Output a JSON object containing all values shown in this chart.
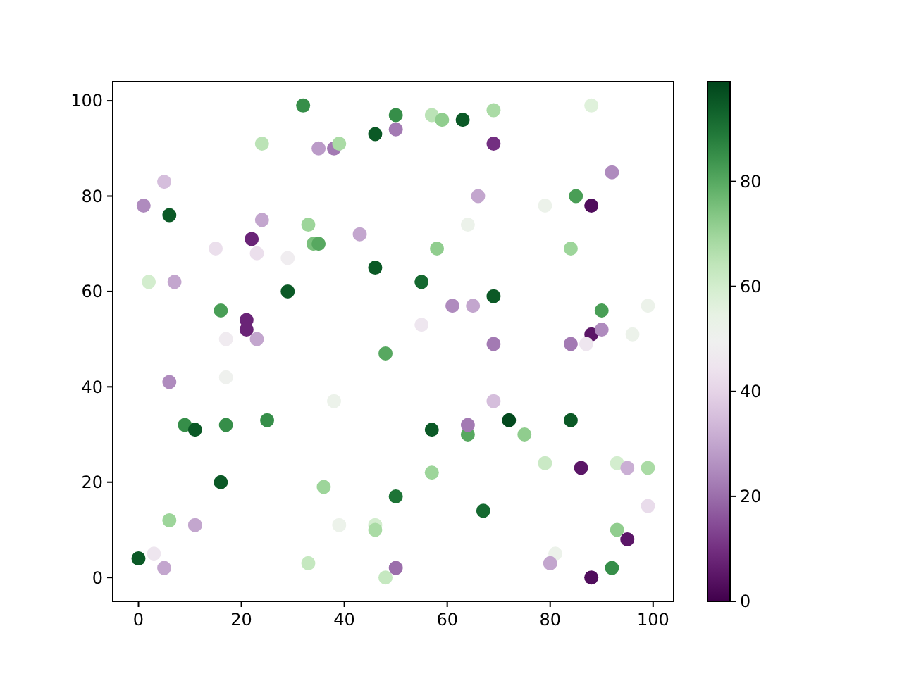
{
  "chart_data": {
    "type": "scatter",
    "xlim": [
      -5,
      104
    ],
    "ylim": [
      -5,
      104
    ],
    "xticks": [
      0,
      20,
      40,
      60,
      80,
      100
    ],
    "yticks": [
      0,
      20,
      40,
      60,
      80,
      100
    ],
    "clim": [
      0,
      99
    ],
    "cticks": [
      0,
      20,
      40,
      60,
      80
    ],
    "marker": "circle",
    "series": [
      {
        "x": [
          0,
          3,
          5,
          1,
          5,
          6,
          2,
          7,
          6,
          9,
          11,
          6,
          11,
          15,
          22,
          24,
          24,
          32,
          35,
          38,
          39,
          16,
          17,
          21,
          21,
          23,
          23,
          29,
          33,
          34,
          35,
          43,
          29,
          16,
          17,
          17,
          25,
          36,
          38,
          39,
          33,
          46,
          46,
          48,
          50,
          50,
          48,
          46,
          46,
          50,
          50,
          57,
          59,
          63,
          69,
          69,
          66,
          64,
          58,
          55,
          55,
          61,
          65,
          69,
          69,
          69,
          57,
          64,
          64,
          72,
          75,
          67,
          57,
          79,
          79,
          85,
          88,
          88,
          92,
          84,
          84,
          88,
          87,
          90,
          90,
          96,
          99,
          84,
          86,
          93,
          95,
          99,
          99,
          93,
          95,
          92,
          88,
          81,
          80
        ],
        "values": [
          4,
          5,
          2,
          78,
          83,
          76,
          62,
          62,
          41,
          32,
          31,
          12,
          11,
          69,
          71,
          75,
          91,
          99,
          90,
          90,
          91,
          56,
          50,
          54,
          52,
          50,
          68,
          67,
          74,
          70,
          70,
          72,
          60,
          20,
          32,
          42,
          33,
          19,
          37,
          11,
          3,
          11,
          10,
          0,
          2,
          17,
          47,
          65,
          93,
          97,
          94,
          97,
          96,
          96,
          98,
          91,
          80,
          74,
          69,
          62,
          53,
          57,
          57,
          59,
          49,
          37,
          31,
          30,
          32,
          33,
          30,
          14,
          22,
          24,
          78,
          80,
          78,
          99,
          85,
          69,
          49,
          51,
          49,
          56,
          52,
          51,
          57,
          33,
          23,
          24,
          23,
          23,
          15,
          10,
          8,
          2,
          0,
          5,
          3
        ],
        "cvalues": [
          95,
          45,
          30,
          25,
          35,
          95,
          60,
          30,
          25,
          85,
          95,
          70,
          30,
          43,
          8,
          30,
          65,
          85,
          28,
          22,
          68,
          82,
          47,
          8,
          8,
          30,
          43,
          48,
          70,
          75,
          80,
          30,
          95,
          95,
          85,
          50,
          85,
          70,
          52,
          52,
          63,
          60,
          68,
          63,
          20,
          90,
          80,
          95,
          95,
          85,
          22,
          65,
          72,
          95,
          68,
          10,
          30,
          52,
          72,
          92,
          45,
          25,
          30,
          95,
          22,
          35,
          95,
          80,
          22,
          98,
          72,
          92,
          70,
          62,
          52,
          82,
          3,
          57,
          25,
          70,
          22,
          5,
          45,
          82,
          25,
          52,
          52,
          95,
          5,
          60,
          32,
          68,
          42,
          72,
          5,
          85,
          3,
          52,
          30
        ]
      }
    ]
  }
}
